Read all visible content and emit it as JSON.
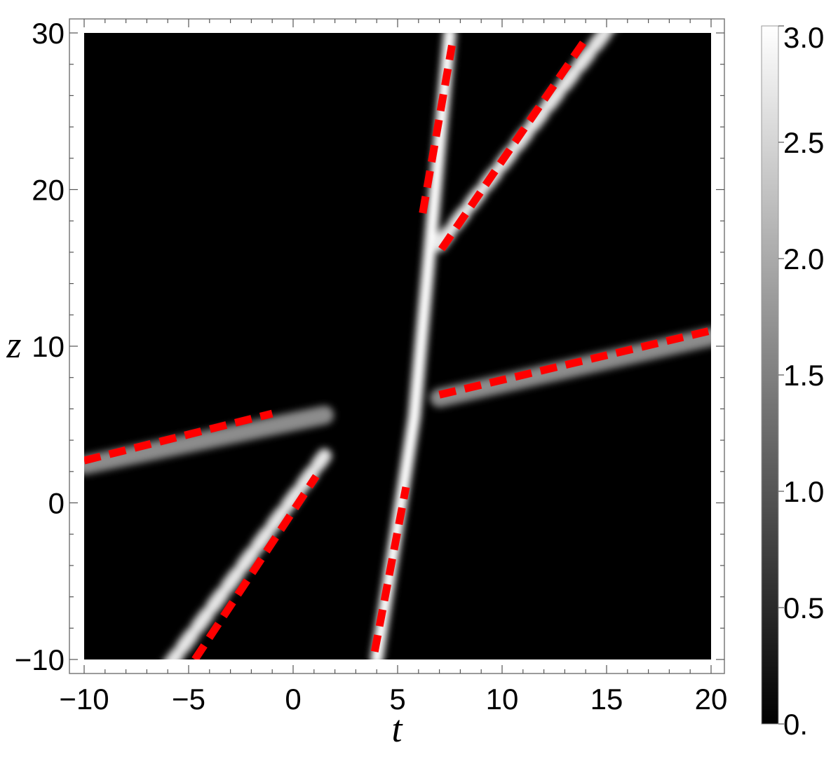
{
  "chart_data": {
    "type": "heatmap",
    "title": "",
    "xlabel": "t",
    "ylabel": "z",
    "xlim": [
      -10,
      20
    ],
    "ylim": [
      -10,
      30
    ],
    "x_ticks": [
      -10,
      -5,
      0,
      5,
      10,
      15,
      20
    ],
    "x_tick_labels": [
      "−10",
      "−5",
      "0",
      "5",
      "10",
      "15",
      "20"
    ],
    "y_ticks": [
      -10,
      0,
      10,
      20,
      30
    ],
    "y_tick_labels": [
      "−10",
      "0",
      "10",
      "20",
      "30"
    ],
    "colorbar": {
      "range": [
        0,
        3
      ],
      "ticks": [
        0,
        0.5,
        1.0,
        1.5,
        2.0,
        2.5,
        3.0
      ],
      "tick_labels": [
        "0.",
        "0.5",
        "1.0",
        "1.5",
        "2.0",
        "2.5",
        "3.0"
      ],
      "colormap": "grayscale",
      "low_color": "#000000",
      "high_color": "#ffffff"
    },
    "background_color": "#000000",
    "beams": [
      {
        "segments": [
          [
            [
              -10,
              2.4
            ],
            [
              1.5,
              5.6
            ]
          ],
          [
            [
              7,
              6.7
            ],
            [
              20,
              10.6
            ]
          ]
        ],
        "width": 0.45,
        "intensity": 0.55
      },
      {
        "segments": [
          [
            [
              4,
              -10
            ],
            [
              5.8,
              5.5
            ]
          ],
          [
            [
              5.8,
              5.5
            ],
            [
              7.5,
              30
            ]
          ]
        ],
        "width": 0.3,
        "intensity": 1.0
      },
      {
        "segments": [
          [
            [
              -6,
              -10.5
            ],
            [
              1.5,
              3
            ]
          ],
          [
            [
              7,
              16.5
            ],
            [
              15.5,
              31
            ]
          ]
        ],
        "width": 0.35,
        "intensity": 0.9,
        "oscillating": true
      }
    ],
    "reference_lines": {
      "color": "#ff0000",
      "style": "dashed",
      "lines": [
        {
          "x": [
            -10,
            -1
          ],
          "y": [
            2.7,
            5.7
          ]
        },
        {
          "x": [
            7,
            20
          ],
          "y": [
            6.9,
            11
          ]
        },
        {
          "x": [
            3.9,
            5.4
          ],
          "y": [
            -9.5,
            1
          ]
        },
        {
          "x": [
            6.2,
            7.6
          ],
          "y": [
            18.5,
            29.2
          ]
        },
        {
          "x": [
            -4.7,
            1.1
          ],
          "y": [
            -10,
            1.7
          ]
        },
        {
          "x": [
            7.1,
            14.1
          ],
          "y": [
            16.2,
            29.8
          ]
        }
      ]
    }
  }
}
